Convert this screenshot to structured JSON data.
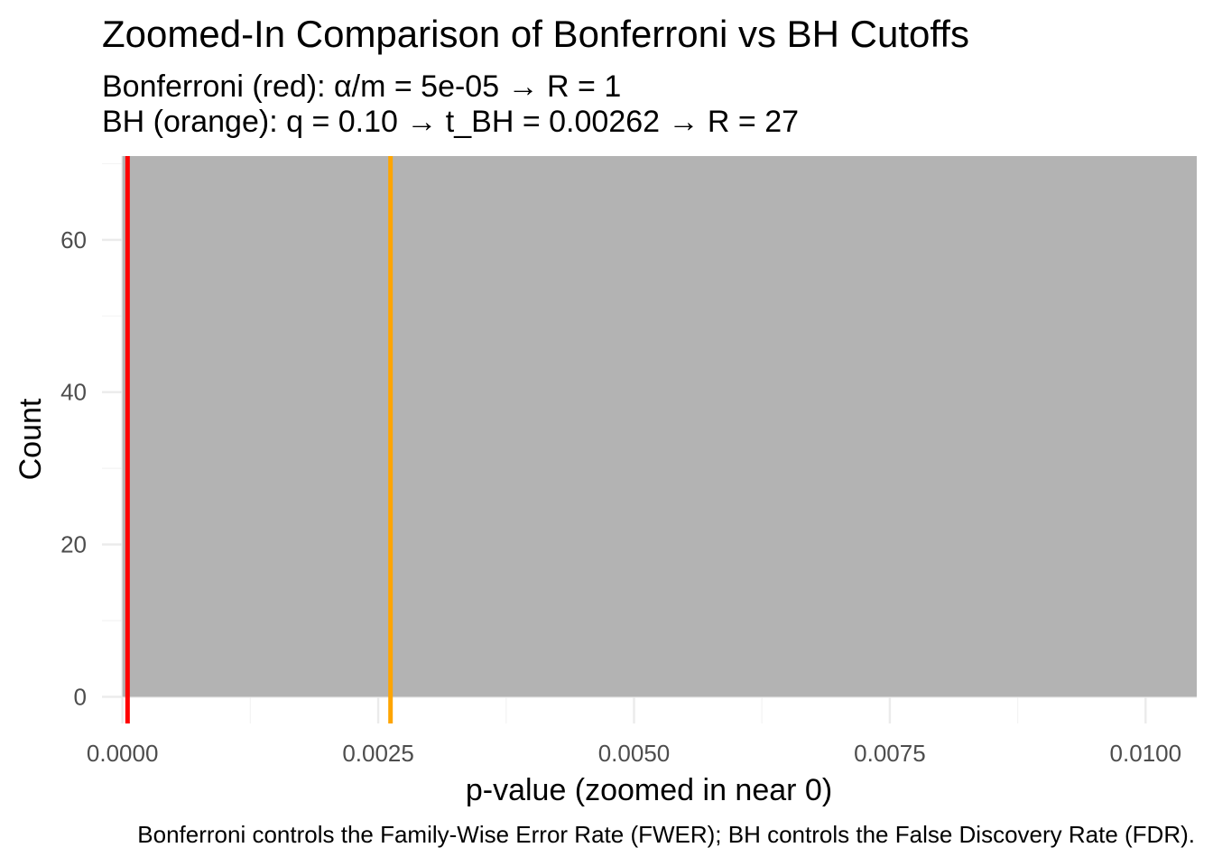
{
  "chart_data": {
    "type": "bar",
    "title": "Zoomed-In Comparison of Bonferroni vs BH Cutoffs",
    "subtitle_lines": [
      "Bonferroni (red): α/m = 5e-05 → R = 1",
      "BH (orange): q = 0.10 → t_BH = 0.00262 → R = 27"
    ],
    "xlabel": "p-value (zoomed in near 0)",
    "ylabel": "Count",
    "caption": "Bonferroni controls the Family-Wise Error Rate (FWER); BH controls the False Discovery Rate (FDR).",
    "xlim": [
      -0.0002,
      0.0105
    ],
    "ylim": [
      -3.5,
      71
    ],
    "x_ticks": [
      0,
      0.0025,
      0.005,
      0.0075,
      0.01
    ],
    "x_tick_labels": [
      "0.0000",
      "0.0025",
      "0.0050",
      "0.0075",
      "0.0100"
    ],
    "y_ticks": [
      0,
      20,
      40,
      60
    ],
    "y_tick_labels": [
      "0",
      "20",
      "40",
      "60"
    ],
    "grid": true,
    "bars": [
      {
        "x_start": 0.0,
        "x_end": 0.0105,
        "count": 71
      }
    ],
    "vlines": [
      {
        "name": "Bonferroni",
        "x": 5e-05,
        "color": "#FF0000"
      },
      {
        "name": "BH",
        "x": 0.00262,
        "color": "#FFA500"
      }
    ],
    "colors": {
      "bar_fill": "#B3B3B3",
      "major_grid": "#EBEBEB",
      "minor_grid": "#F4F4F4",
      "tick_label": "#4D4D4D"
    }
  }
}
